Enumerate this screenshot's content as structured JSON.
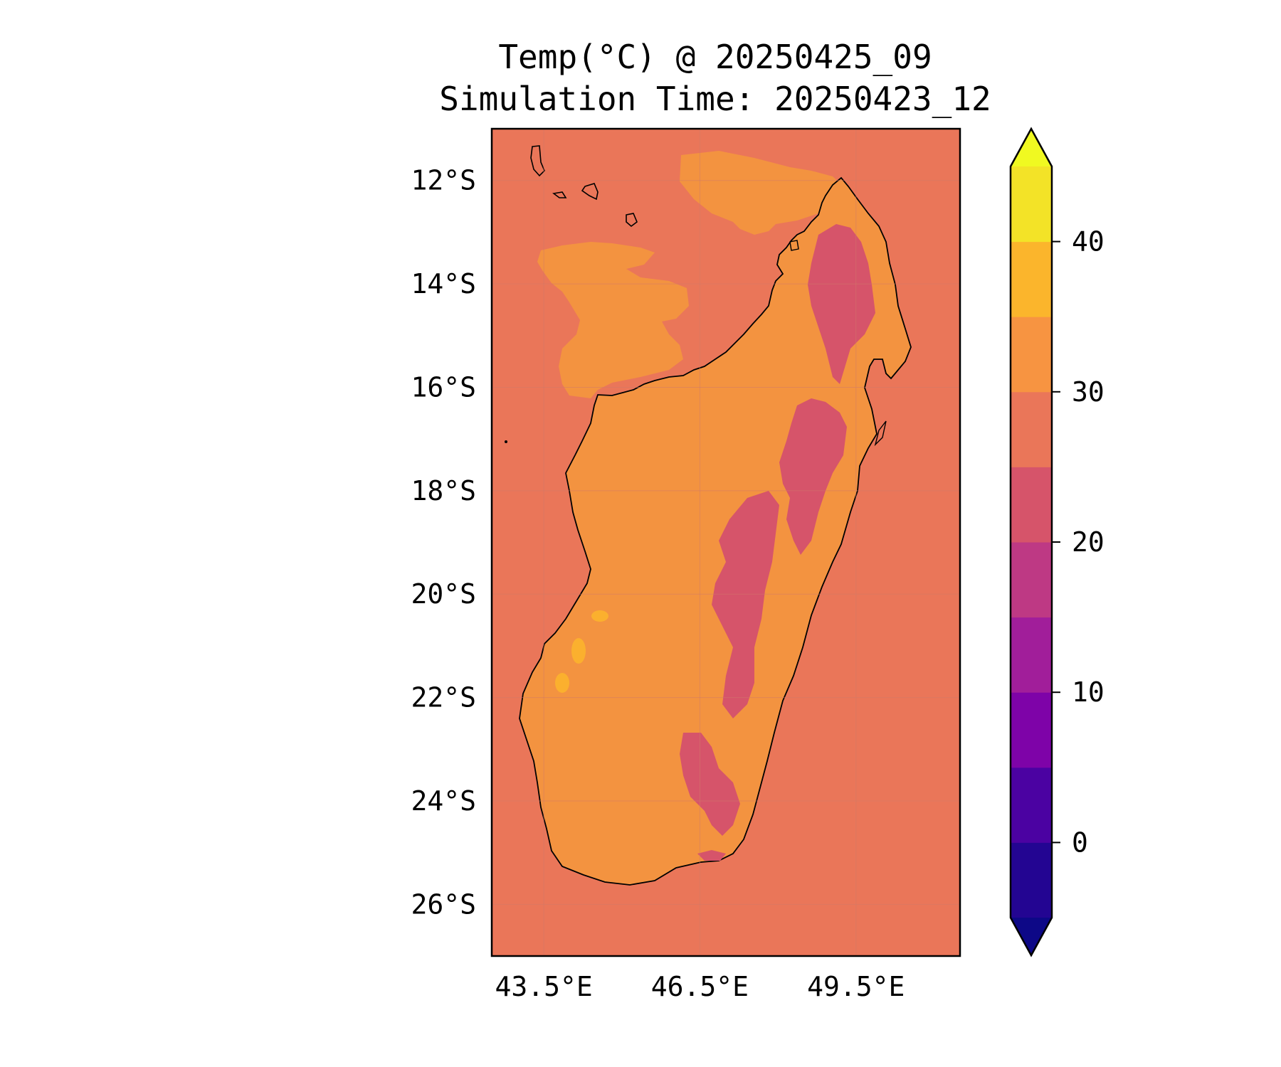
{
  "title": {
    "line1": "Temp(°C) @ 20250425_09",
    "line2": "Simulation Time: 20250423_12"
  },
  "map": {
    "extent_lon": [
      42.5,
      51.5
    ],
    "extent_lat": [
      -27,
      -11
    ],
    "background_color": "#ea7659",
    "land_color": "#f39340",
    "cool_color": "#d6546a",
    "hot_color": "#fbb02e",
    "lat_labels": [
      "12°S",
      "14°S",
      "16°S",
      "18°S",
      "20°S",
      "22°S",
      "24°S",
      "26°S"
    ],
    "lat_values": [
      -12,
      -14,
      -16,
      -18,
      -20,
      -22,
      -24,
      -26
    ],
    "lon_labels": [
      "43.5°E",
      "46.5°E",
      "49.5°E"
    ],
    "lon_values": [
      43.5,
      46.5,
      49.5
    ]
  },
  "colorbar": {
    "tick_labels": [
      "40",
      "30",
      "20",
      "10",
      "0"
    ],
    "tick_values": [
      40,
      30,
      20,
      10,
      0
    ],
    "range": [
      -5,
      45
    ],
    "extend": "both",
    "levels": [
      {
        "from": -5,
        "to": 0,
        "color": "#230592"
      },
      {
        "from": 0,
        "to": 5,
        "color": "#4b02a2"
      },
      {
        "from": 5,
        "to": 10,
        "color": "#7e03a8"
      },
      {
        "from": 10,
        "to": 15,
        "color": "#a11e9a"
      },
      {
        "from": 15,
        "to": 20,
        "color": "#be3984"
      },
      {
        "from": 20,
        "to": 25,
        "color": "#d6546a"
      },
      {
        "from": 25,
        "to": 30,
        "color": "#ea7659"
      },
      {
        "from": 30,
        "to": 35,
        "color": "#f79441"
      },
      {
        "from": 35,
        "to": 40,
        "color": "#fbb52c"
      },
      {
        "from": 40,
        "to": 45,
        "color": "#f3e327"
      }
    ],
    "under_color": "#0d0887",
    "over_color": "#f0f921"
  }
}
